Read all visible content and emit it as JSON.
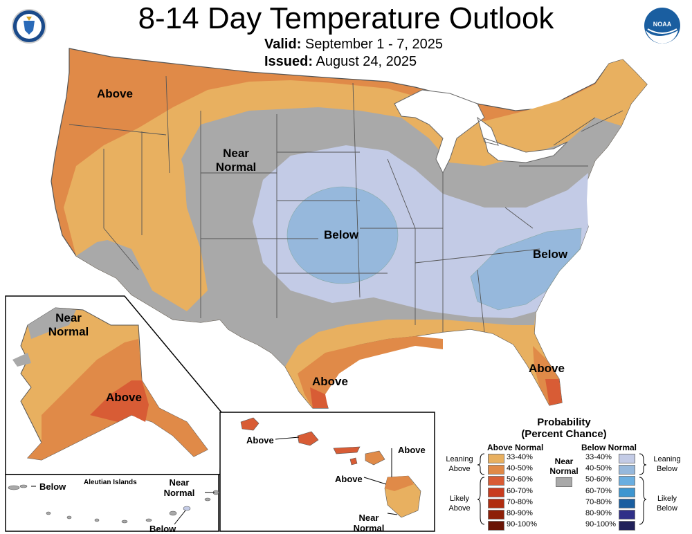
{
  "header": {
    "title": "8-14 Day Temperature Outlook",
    "valid_label": "Valid:",
    "valid_value": "September 1 - 7, 2025",
    "issued_label": "Issued:",
    "issued_value": "August 24, 2025",
    "left_logo": "department-of-commerce-seal",
    "right_logo": "noaa-logo",
    "right_logo_text": "NOAA"
  },
  "conus_labels": {
    "above_nw": "Above",
    "near_normal": [
      "Near",
      "Normal"
    ],
    "below_central": "Below",
    "below_se": "Below",
    "above_tx": "Above",
    "above_fl": "Above"
  },
  "alaska_labels": {
    "near_normal": [
      "Near",
      "Normal"
    ],
    "above": "Above",
    "aleutian_title": "Aleutian Islands",
    "aleutian_below_w": "Below",
    "aleutian_near": [
      "Near",
      "Normal"
    ],
    "aleutian_below_e": "Below"
  },
  "hawaii_labels": {
    "above_w": "Above",
    "above_e": "Above",
    "above_c": "Above",
    "near_normal": [
      "Near",
      "Normal"
    ]
  },
  "legend": {
    "title": [
      "Probability",
      "(Percent Chance)"
    ],
    "above_header": "Above Normal",
    "below_header": "Below Normal",
    "near_label": [
      "Near",
      "Normal"
    ],
    "leaning_above": [
      "Leaning",
      "Above"
    ],
    "likely_above": [
      "Likely",
      "Above"
    ],
    "leaning_below": [
      "Leaning",
      "Below"
    ],
    "likely_below": [
      "Likely",
      "Below"
    ],
    "above_bins": [
      {
        "label": "33-40%",
        "color": "#e8b060"
      },
      {
        "label": "40-50%",
        "color": "#e08a48"
      },
      {
        "label": "50-60%",
        "color": "#d85c35"
      },
      {
        "label": "60-70%",
        "color": "#c83c1e"
      },
      {
        "label": "70-80%",
        "color": "#b02d10"
      },
      {
        "label": "80-90%",
        "color": "#8e2008"
      },
      {
        "label": "90-100%",
        "color": "#6a1405"
      }
    ],
    "below_bins": [
      {
        "label": "33-40%",
        "color": "#c3cbe6"
      },
      {
        "label": "40-50%",
        "color": "#96b8dc"
      },
      {
        "label": "50-60%",
        "color": "#6aaee0"
      },
      {
        "label": "60-70%",
        "color": "#3e96d0"
      },
      {
        "label": "70-80%",
        "color": "#1a5ea0"
      },
      {
        "label": "80-90%",
        "color": "#303088"
      },
      {
        "label": "90-100%",
        "color": "#20205a"
      }
    ],
    "near_color": "#a9a9a9"
  }
}
